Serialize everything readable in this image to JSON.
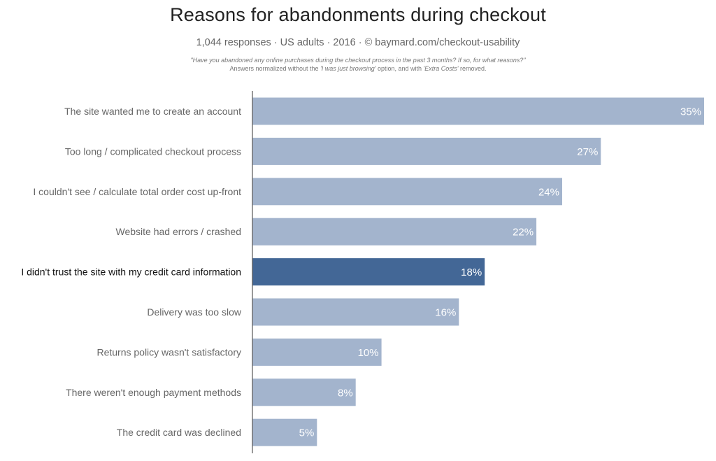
{
  "header": {
    "title": "Reasons for abandonments during checkout",
    "subtitle": "1,044 responses  ·  US adults  ·  2016  ·  ©  baymard.com/checkout-usability",
    "question": "\"Have you abandoned any online purchases during the checkout process in the past 3 months? If so, for what reasons?\"",
    "note_prefix": "Answers normalized without the ",
    "note_em1": "'I was just browsing'",
    "note_middle": " option, and with ",
    "note_em2": "'Extra Costs'",
    "note_suffix": " removed."
  },
  "colors": {
    "bar": "#a3b4cd",
    "bar_highlight": "#436796",
    "axis": "#555555"
  },
  "chart_data": {
    "type": "bar",
    "orientation": "horizontal",
    "categories": [
      "The site wanted me to create an account",
      "Too long / complicated checkout process",
      "I couldn't see / calculate total order cost up-front",
      "Website had errors / crashed",
      "I didn't trust the site with my credit card information",
      "Delivery was too slow",
      "Returns policy wasn't satisfactory",
      "There weren't enough payment methods",
      "The credit card was declined"
    ],
    "values": [
      35,
      27,
      24,
      22,
      18,
      16,
      10,
      8,
      5
    ],
    "value_labels": [
      "35%",
      "27%",
      "24%",
      "22%",
      "18%",
      "16%",
      "10%",
      "8%",
      "5%"
    ],
    "highlight_index": 4,
    "xlim": [
      0,
      35
    ],
    "grid": false,
    "legend": "none"
  }
}
